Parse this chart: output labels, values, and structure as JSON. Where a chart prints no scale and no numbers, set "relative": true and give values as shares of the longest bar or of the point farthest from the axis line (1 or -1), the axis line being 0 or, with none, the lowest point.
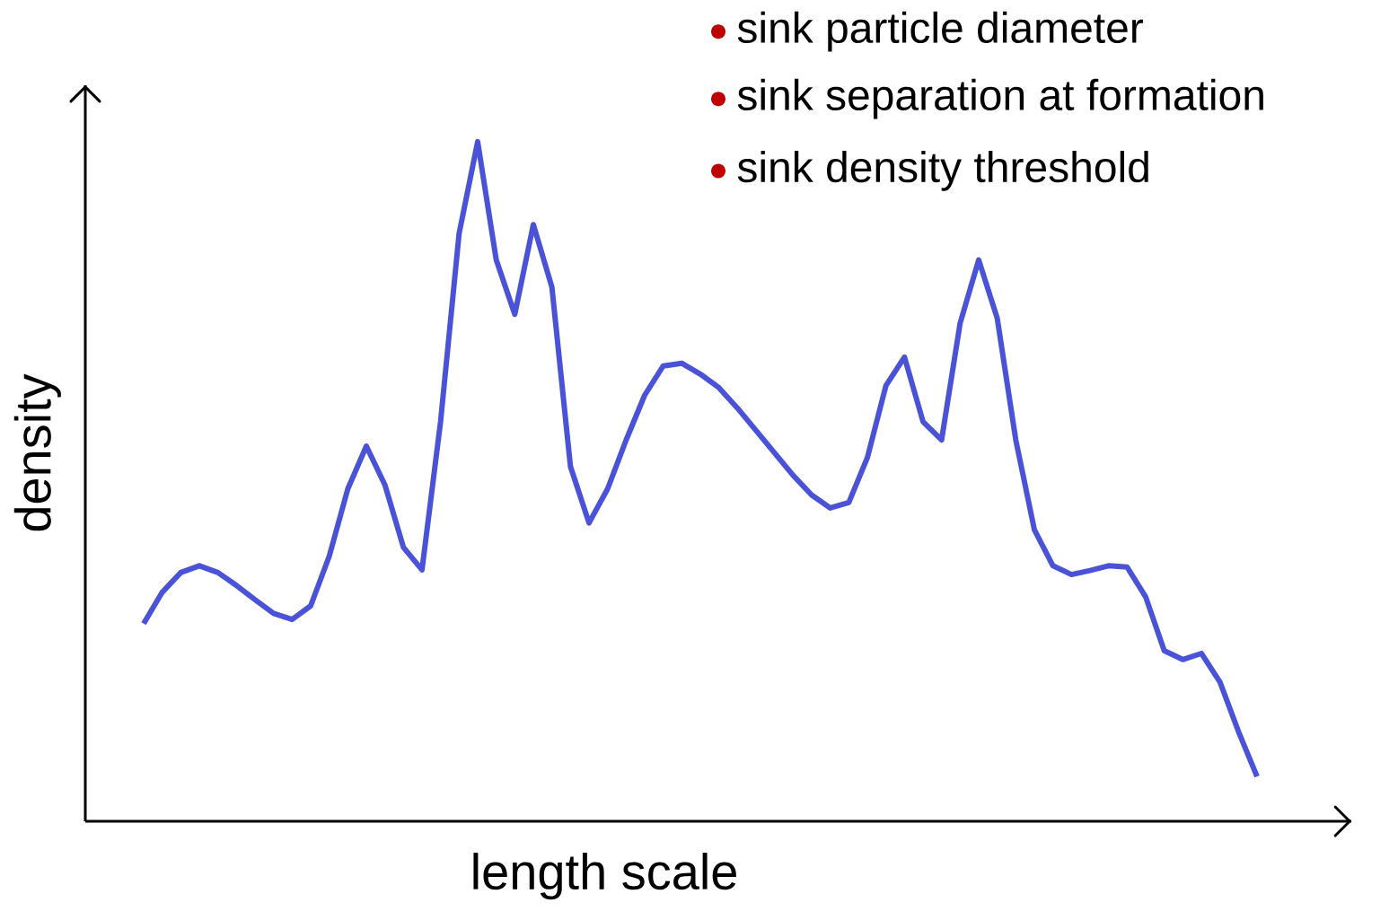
{
  "chart_data": {
    "type": "line",
    "relative": true,
    "xlabel": "length scale",
    "ylabel": "density",
    "color": "#4a52d8",
    "marker": "none",
    "line_style": "solid",
    "tick_labels": false,
    "annotations": [
      "sink particle diameter",
      "sink separation at formation",
      "sink density threshold"
    ],
    "categories": [
      null,
      null,
      null,
      null,
      null,
      null,
      null,
      null,
      null,
      null,
      null,
      null,
      null,
      null,
      null,
      null,
      null,
      null,
      null,
      null,
      null,
      null,
      null,
      null,
      null,
      null,
      null,
      null,
      null,
      null,
      null,
      null,
      null,
      null,
      null,
      null,
      null,
      null,
      null,
      null,
      null,
      null,
      null,
      null,
      null,
      null,
      null,
      null,
      null,
      null,
      null,
      null,
      null,
      null,
      null,
      null,
      null,
      null,
      null,
      null,
      null
    ],
    "values": [
      0.291,
      0.337,
      0.366,
      0.376,
      0.366,
      0.347,
      0.326,
      0.306,
      0.297,
      0.317,
      0.39,
      0.489,
      0.552,
      0.495,
      0.403,
      0.37,
      0.588,
      0.865,
      1.0,
      0.826,
      0.746,
      0.878,
      0.786,
      0.522,
      0.439,
      0.489,
      0.561,
      0.627,
      0.67,
      0.674,
      0.658,
      0.638,
      0.608,
      0.575,
      0.542,
      0.509,
      0.48,
      0.461,
      0.469,
      0.535,
      0.641,
      0.683,
      0.588,
      0.561,
      0.733,
      0.826,
      0.74,
      0.561,
      0.429,
      0.376,
      0.363,
      0.369,
      0.376,
      0.374,
      0.33,
      0.251,
      0.238,
      0.247,
      0.205,
      0.132,
      0.066
    ]
  }
}
